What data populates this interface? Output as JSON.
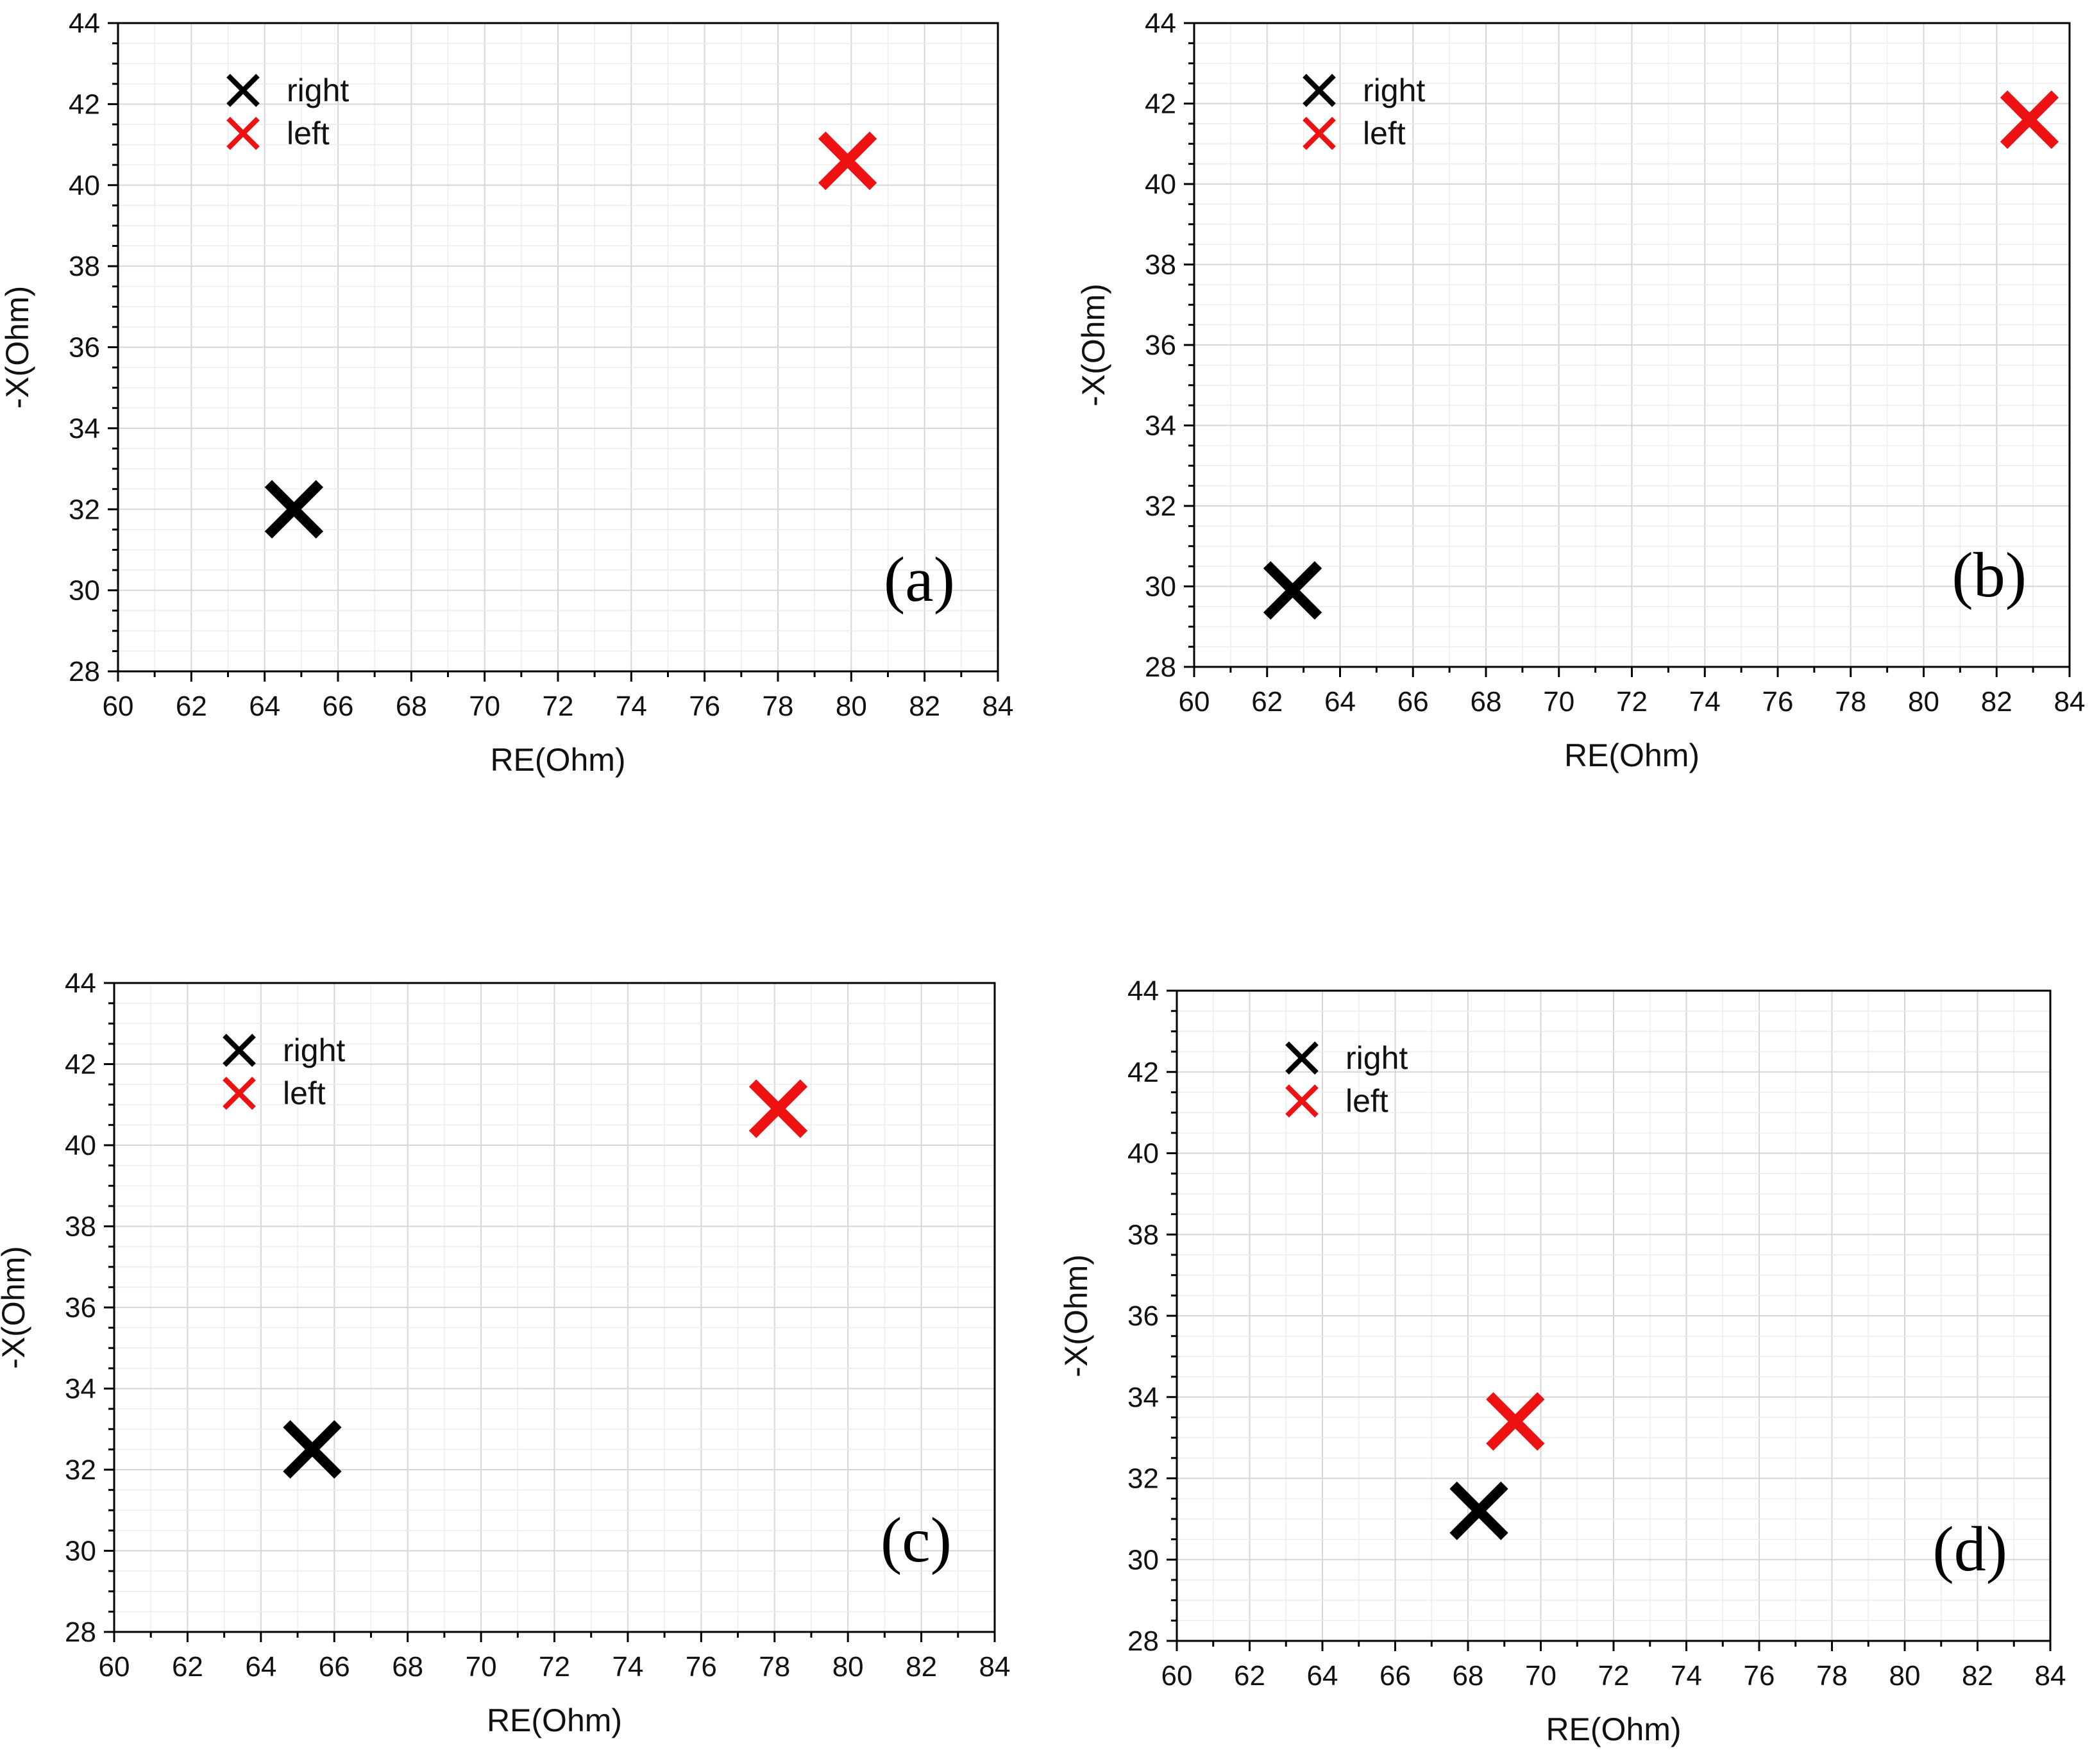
{
  "chart_data": [
    {
      "type": "scatter",
      "panel_label": "(a)",
      "xlabel": "RE(Ohm)",
      "ylabel": "-X(Ohm)",
      "xlim": [
        60,
        84
      ],
      "ylim": [
        28,
        44
      ],
      "x_ticks": [
        "60",
        "62",
        "64",
        "66",
        "68",
        "70",
        "72",
        "74",
        "76",
        "78",
        "80",
        "82",
        "84"
      ],
      "y_ticks": [
        "28",
        "30",
        "32",
        "34",
        "36",
        "38",
        "40",
        "42",
        "44"
      ],
      "grid": true,
      "legend_position": "top-left",
      "series": [
        {
          "name": "right",
          "color": "#000000",
          "marker": "x",
          "points": [
            {
              "x": 64.8,
              "y": 32.0
            }
          ]
        },
        {
          "name": "left",
          "color": "#ee1111",
          "marker": "x",
          "points": [
            {
              "x": 79.9,
              "y": 40.6
            }
          ]
        }
      ]
    },
    {
      "type": "scatter",
      "panel_label": "(b)",
      "xlabel": "RE(Ohm)",
      "ylabel": "-X(Ohm)",
      "xlim": [
        60,
        84
      ],
      "ylim": [
        28,
        44
      ],
      "x_ticks": [
        "60",
        "62",
        "64",
        "66",
        "68",
        "70",
        "72",
        "74",
        "76",
        "78",
        "80",
        "82",
        "84"
      ],
      "y_ticks": [
        "28",
        "30",
        "32",
        "34",
        "36",
        "38",
        "40",
        "42",
        "44"
      ],
      "grid": true,
      "legend_position": "top-left",
      "series": [
        {
          "name": "right",
          "color": "#000000",
          "marker": "x",
          "points": [
            {
              "x": 62.7,
              "y": 29.9
            }
          ]
        },
        {
          "name": "left",
          "color": "#ee1111",
          "marker": "x",
          "points": [
            {
              "x": 82.9,
              "y": 41.6
            }
          ]
        }
      ]
    },
    {
      "type": "scatter",
      "panel_label": "(c)",
      "xlabel": "RE(Ohm)",
      "ylabel": "-X(Ohm)",
      "xlim": [
        60,
        84
      ],
      "ylim": [
        28,
        44
      ],
      "x_ticks": [
        "60",
        "62",
        "64",
        "66",
        "68",
        "70",
        "72",
        "74",
        "76",
        "78",
        "80",
        "82",
        "84"
      ],
      "y_ticks": [
        "28",
        "30",
        "32",
        "34",
        "36",
        "38",
        "40",
        "42",
        "44"
      ],
      "grid": true,
      "legend_position": "top-left",
      "series": [
        {
          "name": "right",
          "color": "#000000",
          "marker": "x",
          "points": [
            {
              "x": 65.4,
              "y": 32.5
            }
          ]
        },
        {
          "name": "left",
          "color": "#ee1111",
          "marker": "x",
          "points": [
            {
              "x": 78.1,
              "y": 40.9
            }
          ]
        }
      ]
    },
    {
      "type": "scatter",
      "panel_label": "(d)",
      "xlabel": "RE(Ohm)",
      "ylabel": "-X(Ohm)",
      "xlim": [
        60,
        84
      ],
      "ylim": [
        28,
        44
      ],
      "x_ticks": [
        "60",
        "62",
        "64",
        "66",
        "68",
        "70",
        "72",
        "74",
        "76",
        "78",
        "80",
        "82",
        "84"
      ],
      "y_ticks": [
        "28",
        "30",
        "32",
        "34",
        "36",
        "38",
        "40",
        "42",
        "44"
      ],
      "grid": true,
      "legend_position": "top-left",
      "series": [
        {
          "name": "right",
          "color": "#000000",
          "marker": "x",
          "points": [
            {
              "x": 68.3,
              "y": 31.2
            }
          ]
        },
        {
          "name": "left",
          "color": "#ee1111",
          "marker": "x",
          "points": [
            {
              "x": 69.3,
              "y": 33.4
            }
          ]
        }
      ]
    }
  ]
}
